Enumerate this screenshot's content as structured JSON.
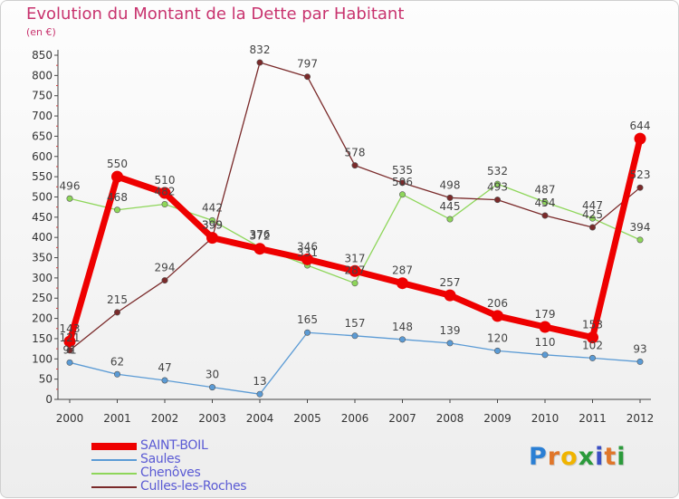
{
  "title": "Evolution du Montant de la Dette par Habitant",
  "unit": "(en €)",
  "brand": "Proxiti",
  "chart_data": {
    "type": "line",
    "x": [
      2000,
      2001,
      2002,
      2003,
      2004,
      2005,
      2006,
      2007,
      2008,
      2009,
      2010,
      2011,
      2012
    ],
    "ylim": [
      0,
      850
    ],
    "y_ticks": [
      0,
      50,
      100,
      150,
      200,
      250,
      300,
      350,
      400,
      450,
      500,
      550,
      600,
      650,
      700,
      750,
      800,
      850
    ],
    "grid": false,
    "legend_position": "bottom-left",
    "series": [
      {
        "name": "SAINT-BOIL",
        "color": "#ee0000",
        "values": [
          143,
          550,
          510,
          399,
          372,
          346,
          317,
          287,
          257,
          206,
          179,
          153,
          644
        ]
      },
      {
        "name": "Saules",
        "color": "#5b9bd5",
        "values": [
          91,
          62,
          47,
          30,
          13,
          165,
          157,
          148,
          139,
          120,
          110,
          102,
          93
        ]
      },
      {
        "name": "Chenôves",
        "color": "#8ed65a",
        "values": [
          496,
          468,
          482,
          442,
          376,
          331,
          287,
          506,
          445,
          532,
          487,
          447,
          394
        ]
      },
      {
        "name": "Culles-les-Roches",
        "color": "#7a2a2a",
        "values": [
          121,
          215,
          294,
          399,
          832,
          797,
          578,
          535,
          498,
          493,
          454,
          425,
          523
        ]
      }
    ]
  }
}
